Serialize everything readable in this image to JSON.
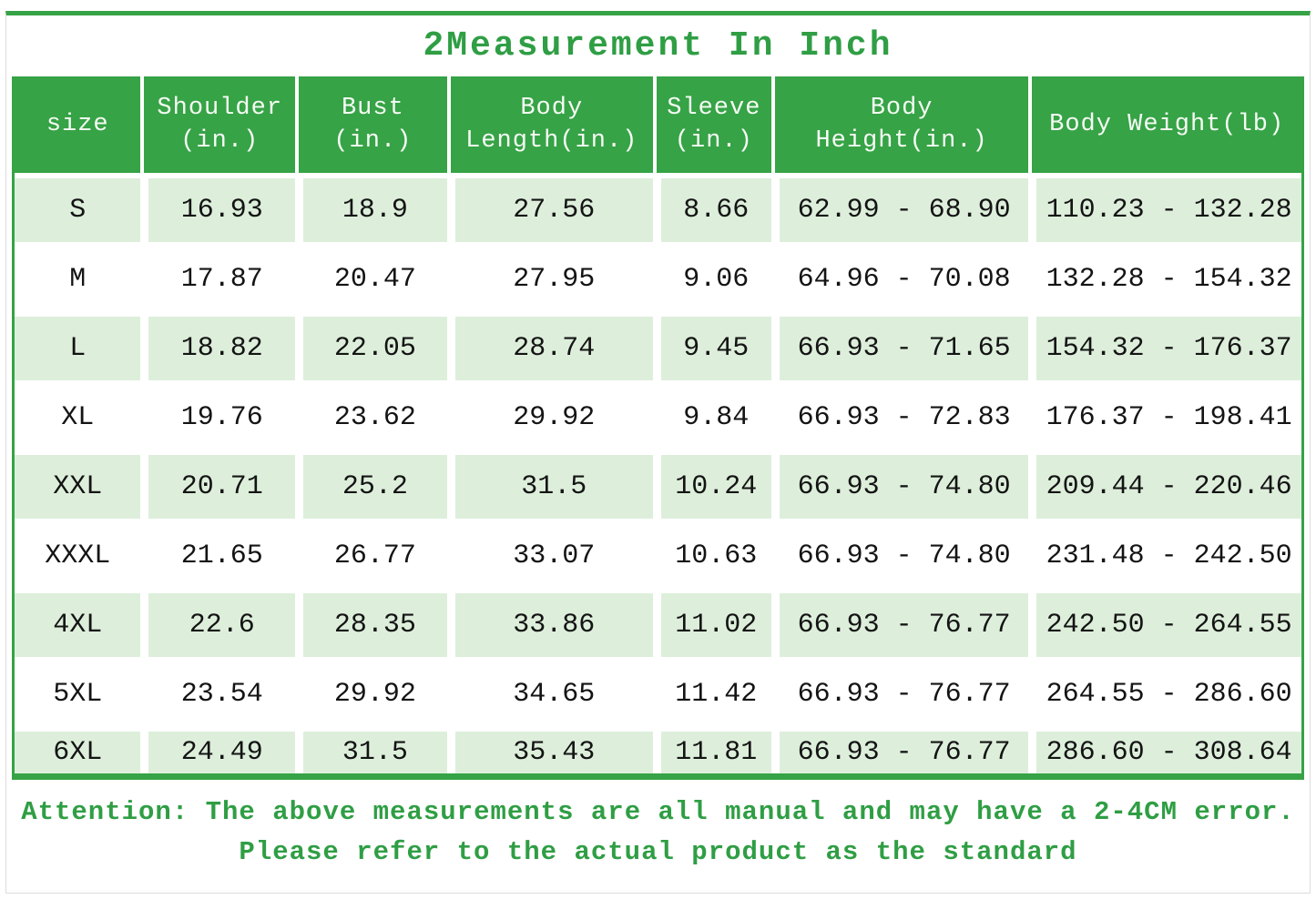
{
  "page": {
    "title": "2Measurement In Inch",
    "attention_line1": "Attention: The above measurements are all manual and may have a 2-4CM error.",
    "attention_line2": "Please refer to the actual product as the standard"
  },
  "colors": {
    "header_green": "#36a346",
    "title_green": "#2f9e44",
    "row_light_green": "#ddefdb",
    "page_border_gray": "#dcdcdc",
    "cell_text": "#141414"
  },
  "table": {
    "headers": [
      {
        "lines": [
          "size"
        ]
      },
      {
        "lines": [
          "Shoulder",
          "(in.)"
        ]
      },
      {
        "lines": [
          "Bust",
          "(in.)"
        ]
      },
      {
        "lines": [
          "Body",
          "Length(in.)"
        ]
      },
      {
        "lines": [
          "Sleeve",
          "(in.)"
        ]
      },
      {
        "lines": [
          "Body",
          "Height(in.)"
        ]
      },
      {
        "lines": [
          "Body Weight(lb)"
        ]
      }
    ],
    "rows": [
      [
        "S",
        "16.93",
        "18.9",
        "27.56",
        "8.66",
        "62.99 - 68.90",
        "110.23 - 132.28"
      ],
      [
        "M",
        "17.87",
        "20.47",
        "27.95",
        "9.06",
        "64.96 - 70.08",
        "132.28 - 154.32"
      ],
      [
        "L",
        "18.82",
        "22.05",
        "28.74",
        "9.45",
        "66.93 - 71.65",
        "154.32 - 176.37"
      ],
      [
        "XL",
        "19.76",
        "23.62",
        "29.92",
        "9.84",
        "66.93 - 72.83",
        "176.37 - 198.41"
      ],
      [
        "XXL",
        "20.71",
        "25.2",
        "31.5",
        "10.24",
        "66.93 - 74.80",
        "209.44 - 220.46"
      ],
      [
        "XXXL",
        "21.65",
        "26.77",
        "33.07",
        "10.63",
        "66.93 - 74.80",
        "231.48 - 242.50"
      ],
      [
        "4XL",
        "22.6",
        "28.35",
        "33.86",
        "11.02",
        "66.93 - 76.77",
        "242.50 - 264.55"
      ],
      [
        "5XL",
        "23.54",
        "29.92",
        "34.65",
        "11.42",
        "66.93 - 76.77",
        "264.55 - 286.60"
      ],
      [
        "6XL",
        "24.49",
        "31.5",
        "35.43",
        "11.81",
        "66.93 - 76.77",
        "286.60 - 308.64"
      ]
    ]
  }
}
